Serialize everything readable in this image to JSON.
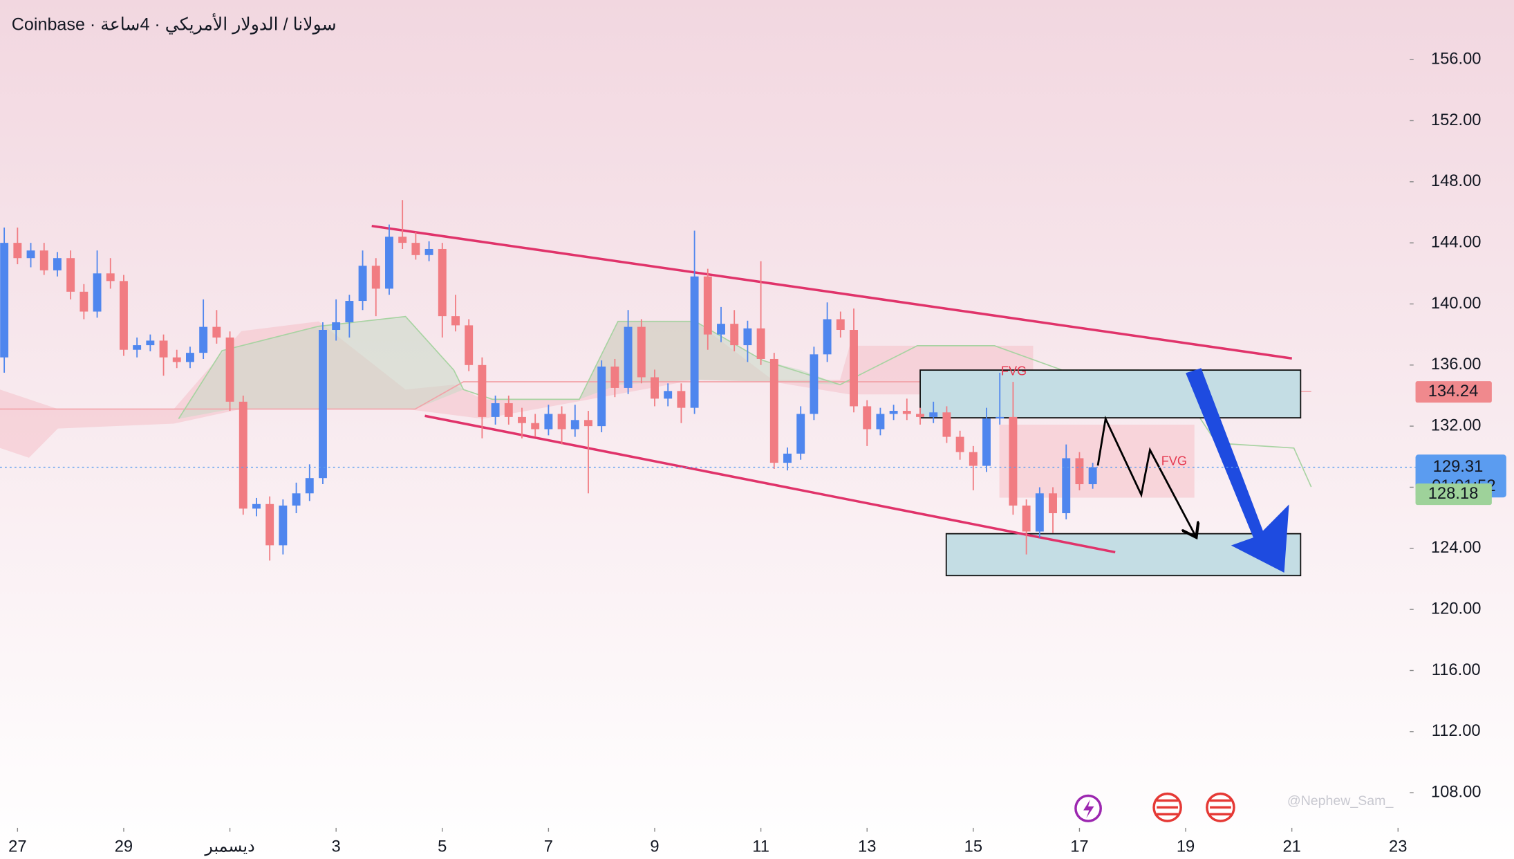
{
  "chart_data": {
    "type": "candlestick",
    "title": "Coinbase · سولانا / الدولار الأمريكي · 4ساعة",
    "x": [
      -0.25,
      0,
      0.25,
      0.5,
      0.75,
      1,
      1.25,
      1.5,
      1.75,
      2,
      2.25,
      2.5,
      2.75,
      3,
      3.25,
      3.5,
      3.75,
      4,
      4.25,
      4.5,
      4.75,
      5,
      5.25,
      5.5,
      5.75,
      6,
      6.25,
      6.5,
      6.75,
      7,
      7.25,
      7.5,
      7.75,
      8,
      8.25,
      8.5,
      8.75,
      9,
      9.25,
      9.5,
      9.75,
      10,
      10.25,
      10.5,
      10.75,
      11,
      11.25,
      11.5,
      11.75,
      12,
      12.25,
      12.5,
      12.75,
      13,
      13.25,
      13.5,
      13.75,
      14,
      14.25,
      14.5,
      14.75,
      15,
      15.25,
      15.5,
      15.75,
      16,
      16.25,
      16.5,
      16.75,
      17,
      17.25,
      17.5,
      17.75,
      18,
      18.25,
      18.5,
      18.75,
      19,
      19.25,
      19.5,
      19.75,
      20,
      20.25
    ],
    "open": [
      136.5,
      144,
      143,
      143.5,
      142.2,
      143,
      140.8,
      139.5,
      142,
      141.5,
      137,
      137.3,
      137.6,
      136.5,
      136.2,
      136.8,
      138.5,
      137.8,
      133.6,
      126.6,
      126.9,
      124.2,
      126.8,
      127.6,
      128.6,
      138.3,
      138.8,
      140.2,
      142.5,
      141,
      144.4,
      144,
      143.2,
      143.6,
      139.2,
      138.6,
      136,
      132.6,
      133.5,
      132.6,
      132.2,
      131.8,
      132.8,
      131.8,
      132.4,
      132,
      135.9,
      134.5,
      138.5,
      135.2,
      133.8,
      134.3,
      133.2,
      141.8,
      138,
      138.7,
      137.3,
      138.4,
      136.4,
      129.6,
      130.2,
      132.8,
      136.7,
      139,
      138.3,
      133.3,
      131.8,
      132.8,
      133,
      132.8,
      132.6,
      132.9,
      131.3,
      130.3,
      129.4,
      132.5,
      132.6,
      126.8,
      125.1,
      127.6,
      126.3,
      129.9,
      128.2
    ],
    "high": [
      145,
      145,
      144,
      144,
      143.4,
      143.5,
      141.3,
      143.5,
      143,
      141.9,
      137.8,
      138,
      138,
      137,
      137.2,
      140.3,
      139.6,
      138.2,
      134,
      127.3,
      127.4,
      127.2,
      128.3,
      129.5,
      138.8,
      140.3,
      140.6,
      143.5,
      143,
      145.2,
      146.8,
      144.7,
      144.1,
      144,
      140.6,
      139,
      136.5,
      134,
      134,
      133.2,
      132.8,
      133.4,
      133.3,
      133.4,
      133,
      136.3,
      136.4,
      139.6,
      139,
      135.7,
      134.8,
      134.8,
      144.8,
      142.3,
      139.8,
      139.6,
      138.9,
      142.8,
      136.8,
      130.6,
      133.3,
      137.2,
      140.1,
      139.5,
      139.7,
      133.7,
      133.2,
      133.4,
      133.8,
      133.2,
      133.6,
      133.3,
      131.7,
      130.7,
      133.2,
      135.5,
      134.9,
      127.2,
      128,
      128,
      130.8,
      130.3,
      129.6
    ],
    "low": [
      135.5,
      142.6,
      142.4,
      141.9,
      141.8,
      140.3,
      139,
      139.1,
      141,
      136.6,
      136.5,
      136.9,
      135.3,
      135.8,
      135.8,
      136.4,
      137.4,
      133,
      126.2,
      126.1,
      123.2,
      123.6,
      126.3,
      127.1,
      128.2,
      137.6,
      137.8,
      139.6,
      139.2,
      140.6,
      143.6,
      142.9,
      142.8,
      137.8,
      138.2,
      135.6,
      131.2,
      132.1,
      132.1,
      131.2,
      131.3,
      131.4,
      130.8,
      131.3,
      127.6,
      131.6,
      133.9,
      134.1,
      134.8,
      133.3,
      133.3,
      132.2,
      132.8,
      137,
      137.5,
      136.9,
      136.2,
      136,
      129.2,
      129.1,
      129.8,
      132.4,
      136.2,
      137.8,
      132.9,
      130.7,
      131.4,
      132.4,
      132.4,
      132.1,
      132.2,
      130.9,
      129.8,
      127.8,
      129,
      132.1,
      126.2,
      123.6,
      124.7,
      125,
      125.9,
      127.8,
      127.9
    ],
    "close": [
      144,
      143,
      143.5,
      142.2,
      143,
      140.8,
      139.5,
      142,
      141.5,
      137,
      137.3,
      137.6,
      136.5,
      136.2,
      136.8,
      138.5,
      137.8,
      133.6,
      126.6,
      126.9,
      124.2,
      126.8,
      127.6,
      128.6,
      138.3,
      138.8,
      140.2,
      142.5,
      141,
      144.4,
      144,
      143.2,
      143.6,
      139.2,
      138.6,
      136,
      132.6,
      133.5,
      132.6,
      132.2,
      131.8,
      132.8,
      131.8,
      132.4,
      132,
      135.9,
      134.5,
      138.5,
      135.2,
      133.8,
      134.3,
      133.2,
      141.8,
      138,
      138.7,
      137.3,
      138.4,
      136.4,
      129.6,
      130.2,
      132.8,
      136.7,
      139,
      138.3,
      133.3,
      131.8,
      132.8,
      133,
      132.8,
      132.6,
      132.9,
      131.3,
      130.3,
      129.4,
      132.5,
      132.6,
      126.8,
      125.1,
      127.6,
      126.3,
      129.9,
      128.2,
      129.31
    ],
    "up_color": "#4f86ee",
    "down_color": "#f17c82",
    "xlim": [
      -0.33,
      26.22
    ],
    "xticks": [
      {
        "value": 0,
        "label": "27"
      },
      {
        "value": 2,
        "label": "29"
      },
      {
        "value": 4,
        "label": "ديسمبر"
      },
      {
        "value": 6,
        "label": "3"
      },
      {
        "value": 8,
        "label": "5"
      },
      {
        "value": 10,
        "label": "7"
      },
      {
        "value": 12,
        "label": "9"
      },
      {
        "value": 14,
        "label": "11"
      },
      {
        "value": 16,
        "label": "13"
      },
      {
        "value": 18,
        "label": "15"
      },
      {
        "value": 20,
        "label": "17"
      },
      {
        "value": 22,
        "label": "19"
      },
      {
        "value": 24,
        "label": "21"
      },
      {
        "value": 26,
        "label": "23"
      }
    ],
    "ylim": [
      105.7,
      159.9
    ],
    "yticks": [
      {
        "value": 108,
        "label": "108.00"
      },
      {
        "value": 112,
        "label": "112.00"
      },
      {
        "value": 116,
        "label": "116.00"
      },
      {
        "value": 120,
        "label": "120.00"
      },
      {
        "value": 124,
        "label": "124.00"
      },
      {
        "value": 128,
        "label": "128.00"
      },
      {
        "value": 132,
        "label": "132.00"
      },
      {
        "value": 136,
        "label": "136.00"
      },
      {
        "value": 140,
        "label": "140.00"
      },
      {
        "value": 144,
        "label": "144.00"
      },
      {
        "value": 148,
        "label": "148.00"
      },
      {
        "value": 152,
        "label": "152.00"
      },
      {
        "value": 156,
        "label": "156.00"
      }
    ],
    "price_labels": [
      {
        "value": 134.24,
        "label": "134.24",
        "color": "#f0898d"
      },
      {
        "value": 129.31,
        "label": "129.31",
        "color": "#5b9cf0"
      },
      {
        "value": 128.18,
        "label": "128.18",
        "color": "#9ed29a"
      }
    ],
    "countdown": "01:01:52",
    "annotations": [
      "FVG",
      "FVG",
      "@Nephew_Sam_"
    ]
  }
}
